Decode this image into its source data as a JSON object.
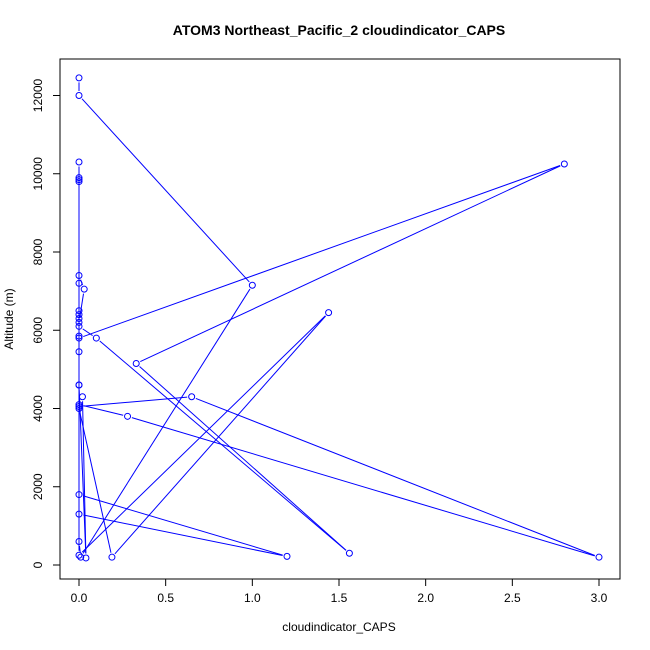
{
  "chart_data": {
    "type": "line",
    "title": "ATOM3 Northeast_Pacific_2 cloudindicator_CAPS",
    "xlabel": "cloudindicator_CAPS",
    "ylabel": "Altitude (m)",
    "xlim": [
      0,
      3
    ],
    "ylim": [
      0,
      12400
    ],
    "x_ticks": [
      0.0,
      0.5,
      1.0,
      1.5,
      2.0,
      2.5,
      3.0
    ],
    "x_tick_labels": [
      "0.0",
      "0.5",
      "1.0",
      "1.5",
      "2.0",
      "2.5",
      "3.0"
    ],
    "y_ticks": [
      0,
      2000,
      4000,
      6000,
      8000,
      10000,
      12000
    ],
    "y_tick_labels": [
      "0",
      "2000",
      "4000",
      "6000",
      "8000",
      "10000",
      "12000"
    ],
    "grid": false,
    "legend": "none",
    "marker": "open-circle",
    "colors": {
      "series": "#0000ff",
      "axes": "#000000"
    },
    "series": [
      {
        "x": [
          0.0,
          0.0,
          1.0,
          0.01,
          0.0,
          0.0,
          0.0,
          0.0,
          0.0,
          0.0,
          1.2,
          0.0,
          0.0,
          0.0,
          0.03,
          0.0,
          0.0,
          0.0,
          0.0,
          0.1,
          1.56,
          0.33,
          2.8,
          0.0,
          0.0,
          0.0,
          0.0,
          0.19,
          1.44,
          0.0,
          0.0,
          0.28,
          3.0,
          0.65,
          0.0,
          0.0,
          0.0,
          0.0,
          0.04,
          0.02
        ],
        "y": [
          12450,
          12000,
          7150,
          200,
          600,
          10300,
          9900,
          9850,
          9800,
          1300,
          220,
          1800,
          6400,
          6200,
          7050,
          7400,
          7200,
          6500,
          6100,
          5800,
          300,
          5150,
          10250,
          5800,
          5450,
          4600,
          4000,
          200,
          6450,
          250,
          4100,
          3800,
          200,
          4300,
          4050,
          6300,
          5850,
          4600,
          180,
          4300
        ]
      }
    ]
  }
}
